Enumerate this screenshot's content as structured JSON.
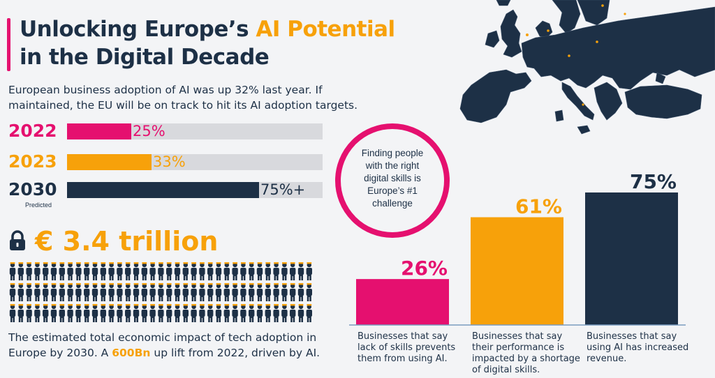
{
  "header": {
    "title_line1_part1": "Unlocking Europe’s ",
    "title_line1_part2": "AI Potential",
    "title_line2": "in the Digital Decade",
    "subtitle": "European business adoption of AI was up 32% last year. If maintained, the EU will be on track to hit its AI adoption targets."
  },
  "adoption": {
    "rows": [
      {
        "year": "2022",
        "percent_label": "25%",
        "value": 25,
        "color": "#e5106f"
      },
      {
        "year": "2023",
        "percent_label": "33%",
        "value": 33,
        "color": "#f7a10a"
      },
      {
        "year": "2030",
        "percent_label": "75%+",
        "value": 75,
        "color": "#1d3046"
      }
    ],
    "predicted_note": "Predicted"
  },
  "impact": {
    "icon": "lock-icon",
    "amount": "€ 3.4 trillion",
    "text_part1": "The estimated total economic impact of tech adoption in Europe by 2030. A ",
    "text_highlight": "600Bn",
    "text_part2": " up lift from 2022, driven by AI."
  },
  "callout": {
    "text": "Finding people with the right digital skills is Europe’s #1 challenge"
  },
  "chart_data": {
    "type": "bar",
    "categories": [
      "Businesses that say lack of skills prevents them from using AI.",
      "Businesses that say their performance is impacted by a shortage of digital skills.",
      "Businesses that say using AI has increased revenue."
    ],
    "values": [
      26,
      61,
      75
    ],
    "value_labels": [
      "26%",
      "61%",
      "75%"
    ],
    "category_lines": [
      [
        "Businesses that say",
        "lack of skills prevents",
        "them from using AI."
      ],
      [
        "Businesses that say",
        "their performance is",
        "impacted by a shortage",
        "of digital skills."
      ],
      [
        "Businesses that say",
        "using AI has increased",
        "revenue."
      ]
    ],
    "colors": [
      "#e5106f",
      "#f7a10a",
      "#1d3046"
    ],
    "ylim": [
      0,
      75
    ]
  },
  "colors": {
    "navy": "#1d3046",
    "pink": "#e5106f",
    "orange": "#f7a10a",
    "track": "#d8d9dd"
  }
}
